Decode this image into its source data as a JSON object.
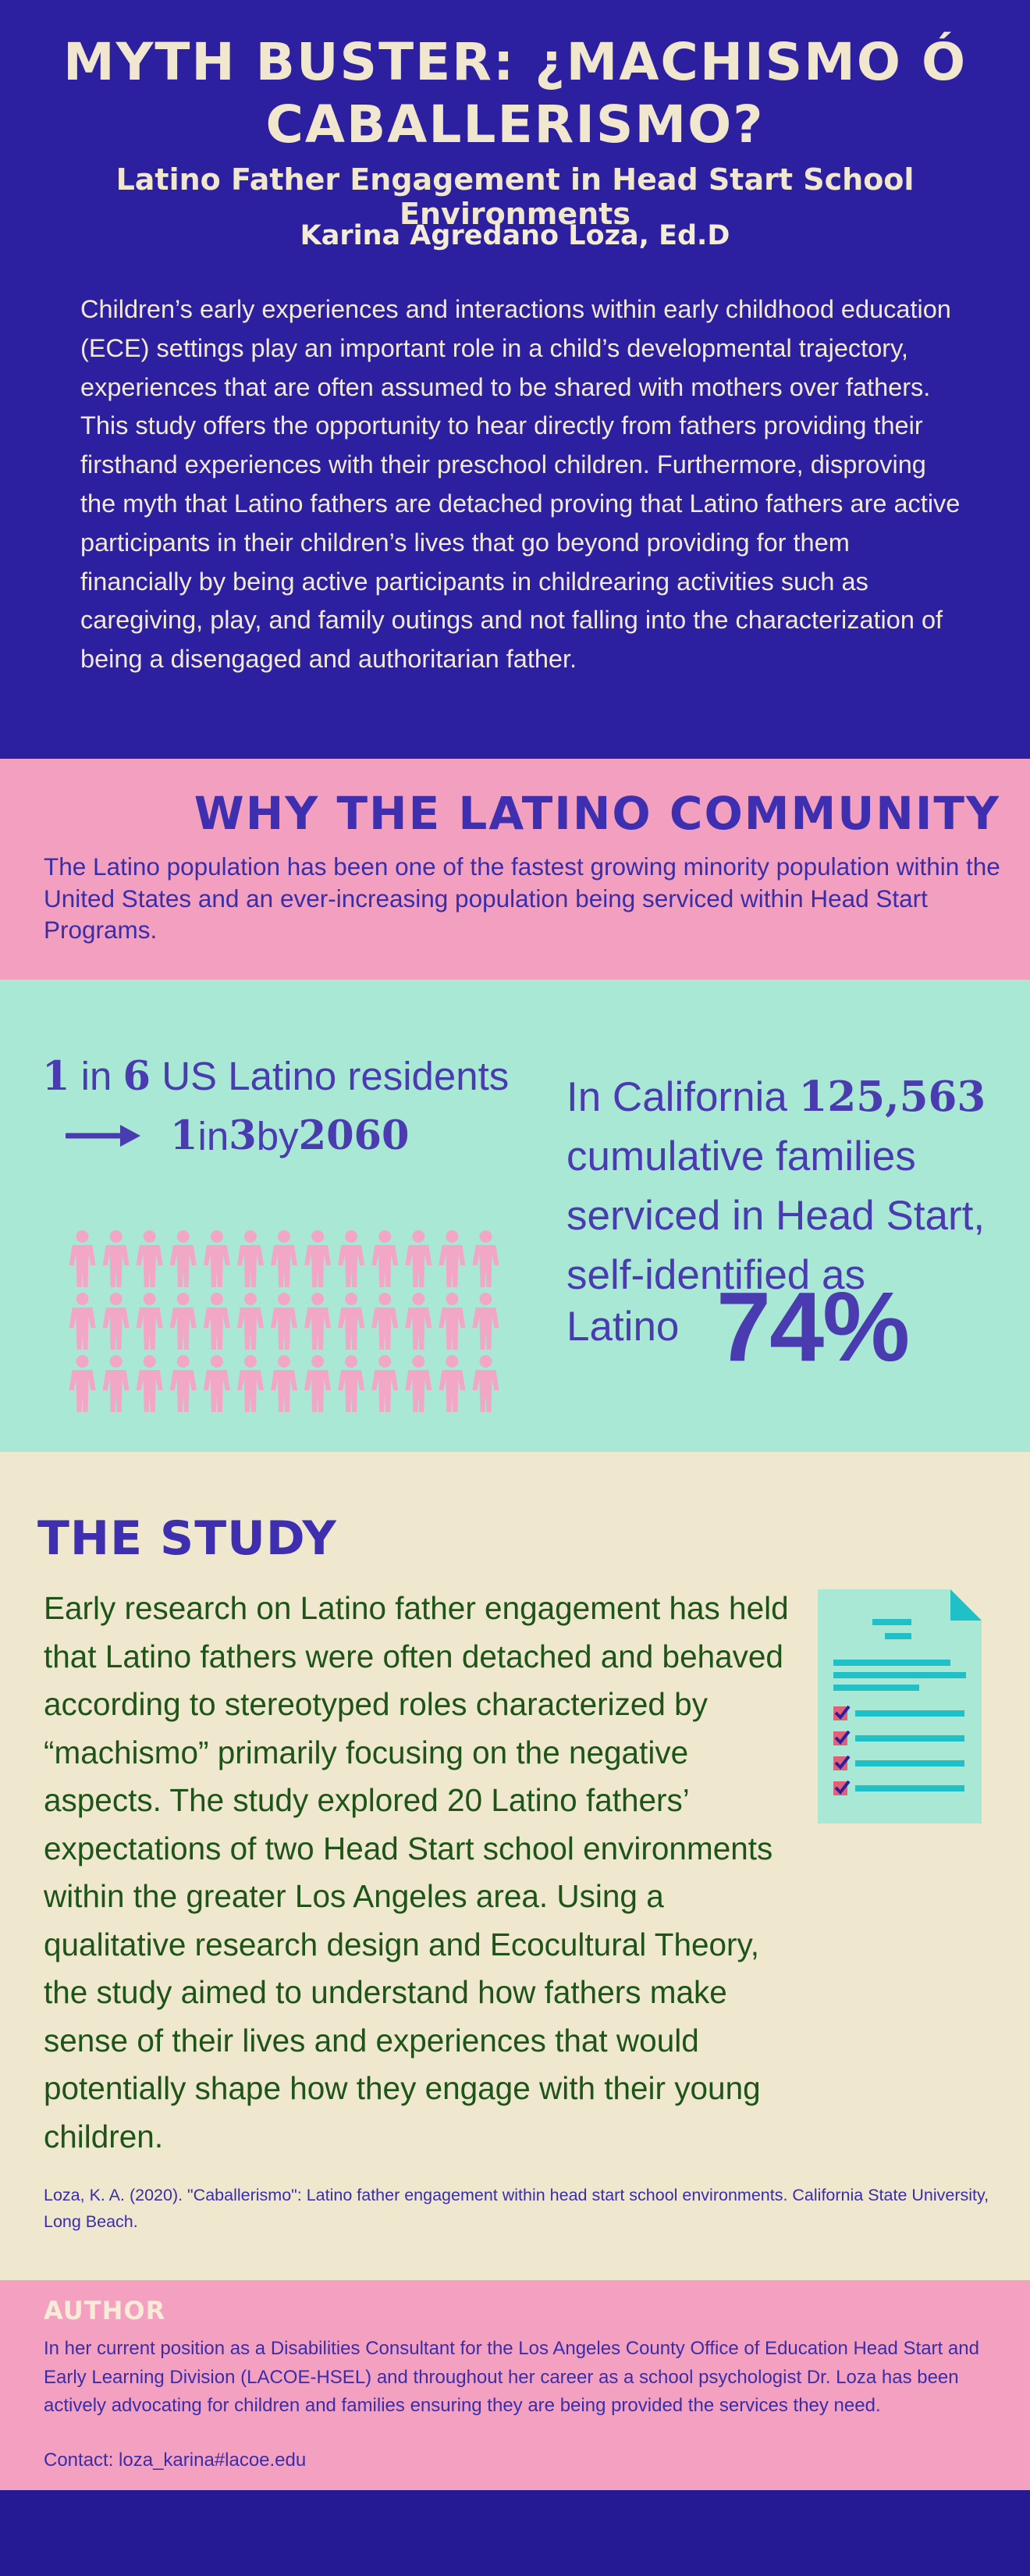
{
  "hero": {
    "title": "MYTH BUSTER: ¿MACHISMO Ó CABALLERISMO?",
    "subtitle": "Latino Father Engagement in Head Start School Environments",
    "author": "Karina Agredano Loza, Ed.D",
    "intro": "Children’s early experiences and interactions within early childhood education (ECE) settings play an important role in a child’s developmental trajectory, experiences that are often assumed to be shared with mothers over fathers. This study offers the opportunity to hear directly from fathers providing their firsthand experiences with their preschool children. Furthermore, disproving the myth that Latino fathers are detached proving that Latino fathers are active participants in their children’s lives that go beyond providing for them financially by being active participants in childrearing activities such as caregiving, play, and family outings and not falling into the characterization of being a disengaged and authoritarian father."
  },
  "why": {
    "title": "WHY THE LATINO COMMUNITY",
    "body": "The Latino population has been one of the fastest growing minority population within the United States and an ever-increasing population being serviced within Head Start Programs."
  },
  "stats": {
    "line1_num1": "1",
    "line1_in": " in ",
    "line1_num2": "6",
    "line1_rest": " US Latino residents",
    "line2_num1": "1",
    "line2_in": " in ",
    "line2_num2": "3",
    "line2_by": " by ",
    "line2_year": "2060",
    "people_rows": 3,
    "people_cols": 13,
    "people_color": "#f3a7c6",
    "arrow_icon": "right-arrow-icon",
    "ca_prefix": "In California ",
    "ca_number": "125,563",
    "ca_rest": "cumulative families serviced in Head Start, self-identified as",
    "ca_latino": "Latino",
    "ca_percent": "74%"
  },
  "study": {
    "title": "THE STUDY",
    "body": "Early research on Latino father engagement has held that Latino fathers were often detached and behaved according to stereotyped roles characterized by “machismo” primarily focusing on the negative aspects. The study explored 20 Latino fathers’ expectations of two Head Start school environments within the greater Los Angeles area. Using a qualitative research design and Ecocultural Theory, the study aimed to understand how fathers make sense of their lives and experiences that would potentially shape how they engage with their young children.",
    "icon": "checklist-document-icon",
    "citation": "Loza, K. A. (2020). \"Caballerismo\": Latino father engagement within head start school environments. California State University, Long Beach."
  },
  "author": {
    "title": "AUTHOR",
    "body": "In her current position as a Disabilities Consultant for the Los Angeles County Office of Education Head Start and Early Learning Division (LACOE-HSEL) and throughout her career as a school psychologist Dr. Loza has been actively advocating for children and families ensuring they are being provided the services they need.",
    "contact": "Contact: loza_karina#lacoe.edu"
  },
  "colors": {
    "navy": "#2d20a0",
    "pink": "#f39fc0",
    "mint": "#a9e8d4",
    "cream": "#efe8cf",
    "purple_text": "#4a3bb1",
    "green_text": "#1e5418",
    "teal_icon": "#20c0c8"
  }
}
